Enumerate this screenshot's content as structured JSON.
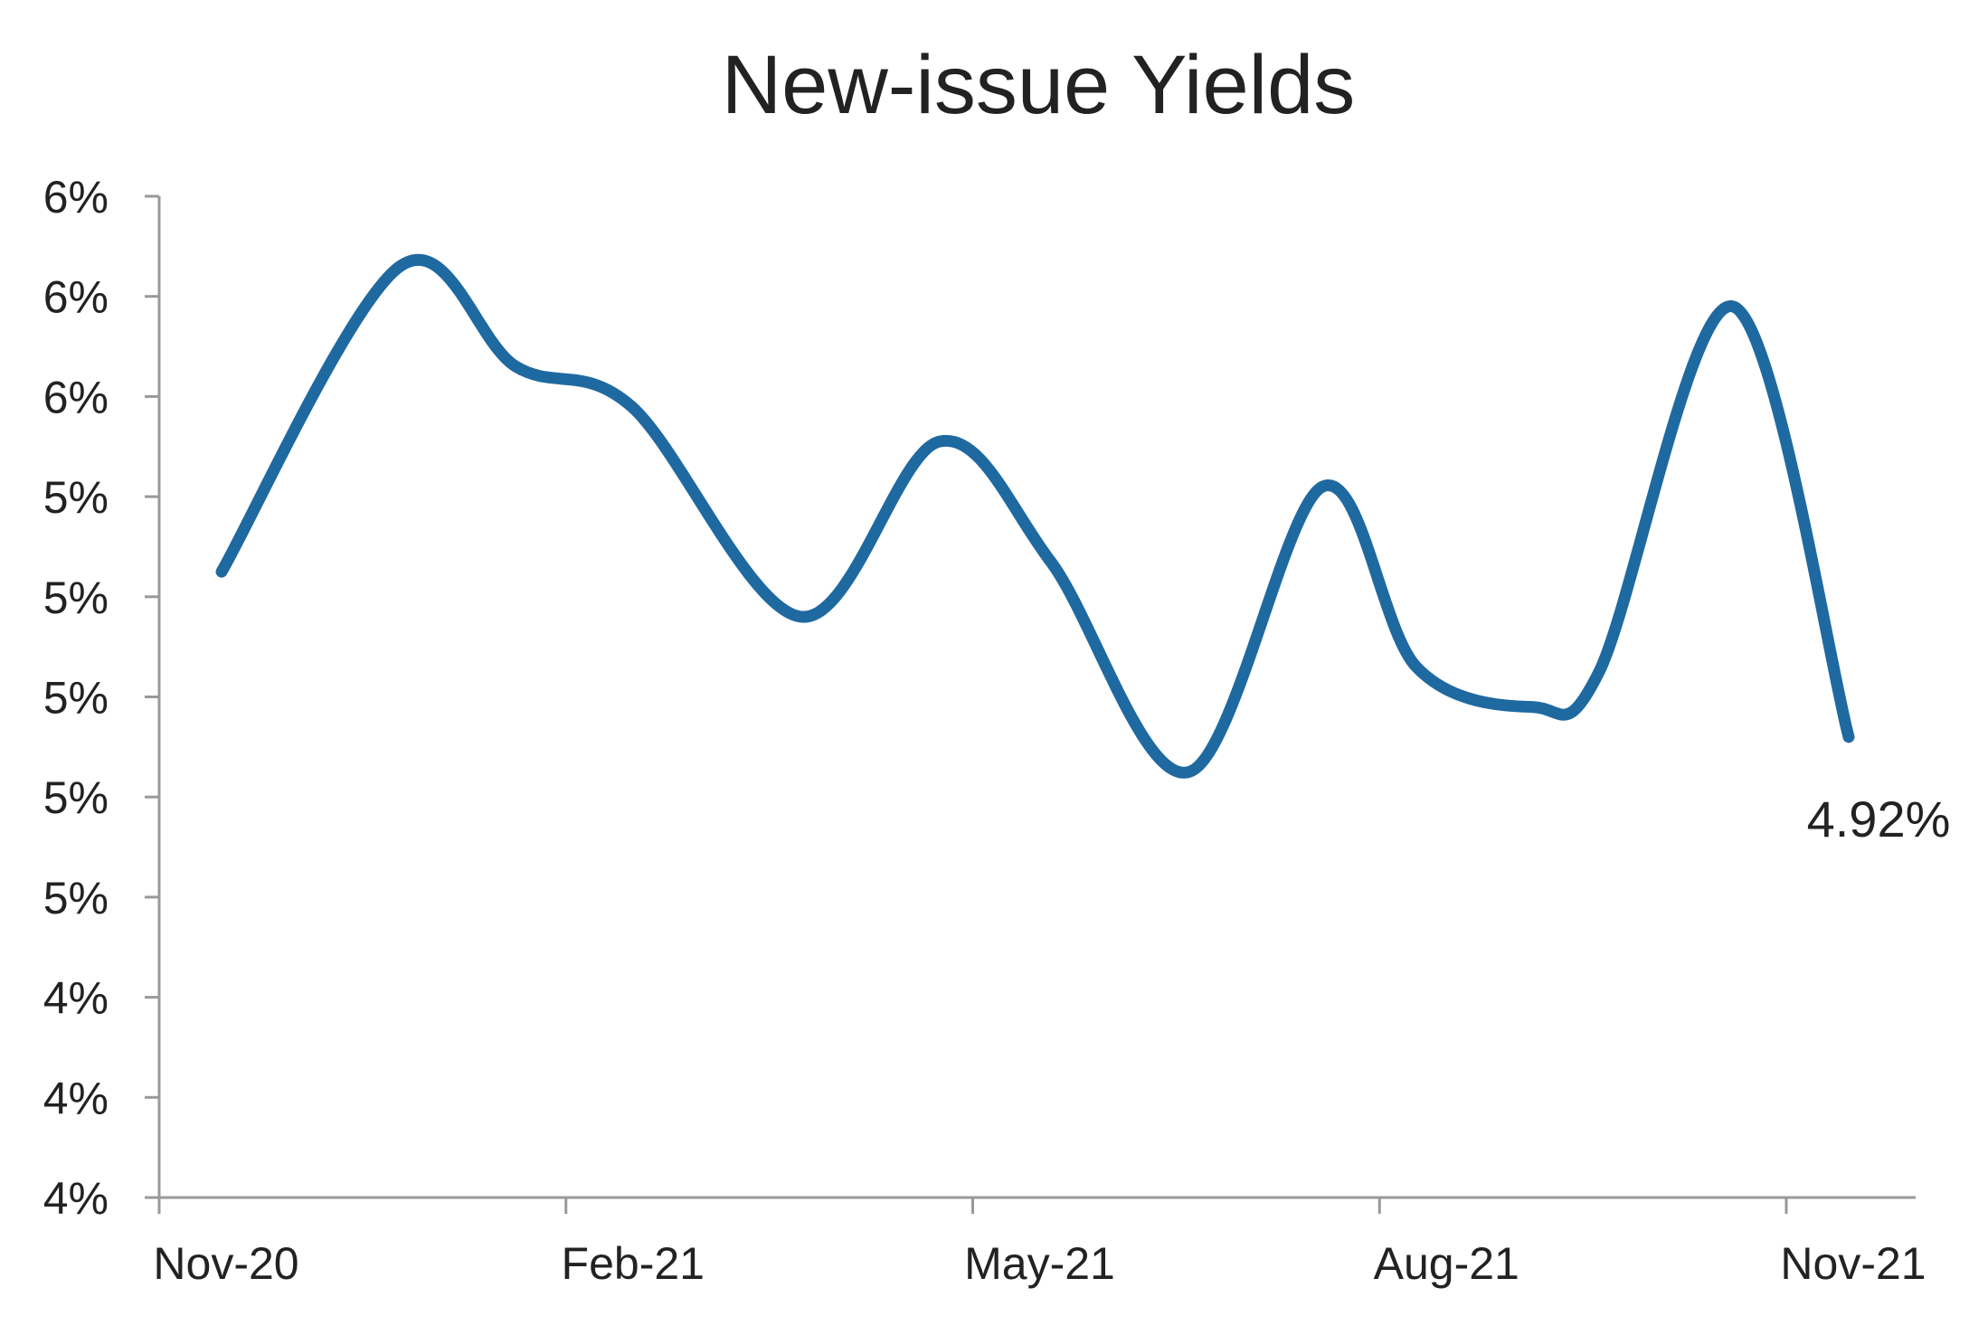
{
  "chart_data": {
    "type": "line",
    "title": "New-issue Yields",
    "xlabel": "",
    "ylabel": "",
    "x_tick_labels": [
      "Nov-20",
      "Feb-21",
      "May-21",
      "Aug-21",
      "Nov-21"
    ],
    "y_tick_labels": [
      "6%",
      "6%",
      "6%",
      "5%",
      "5%",
      "5%",
      "5%",
      "5%",
      "4%",
      "4%",
      "4%"
    ],
    "ylim": [
      4.0,
      6.0
    ],
    "grid": false,
    "legend": "none",
    "series": [
      {
        "values": [
          {
            "x": "2020-11-15",
            "y": 5.25
          },
          {
            "x": "2020-12-25",
            "y": 5.86
          },
          {
            "x": "2021-01-20",
            "y": 5.66
          },
          {
            "x": "2021-02-15",
            "y": 5.58
          },
          {
            "x": "2021-03-25",
            "y": 5.16
          },
          {
            "x": "2021-04-25",
            "y": 5.51
          },
          {
            "x": "2021-05-20",
            "y": 5.27
          },
          {
            "x": "2021-06-20",
            "y": 4.85
          },
          {
            "x": "2021-07-20",
            "y": 5.42
          },
          {
            "x": "2021-08-10",
            "y": 5.06
          },
          {
            "x": "2021-09-05",
            "y": 4.98
          },
          {
            "x": "2021-09-20",
            "y": 5.05
          },
          {
            "x": "2021-10-20",
            "y": 5.78
          },
          {
            "x": "2021-11-15",
            "y": 4.92
          }
        ]
      }
    ],
    "annotations": [
      {
        "text": "4.92%",
        "x": "2021-11-15",
        "y": 4.92
      }
    ],
    "colors": {
      "line": "#1f69a1",
      "axis": "#999999",
      "text": "#222222"
    }
  }
}
